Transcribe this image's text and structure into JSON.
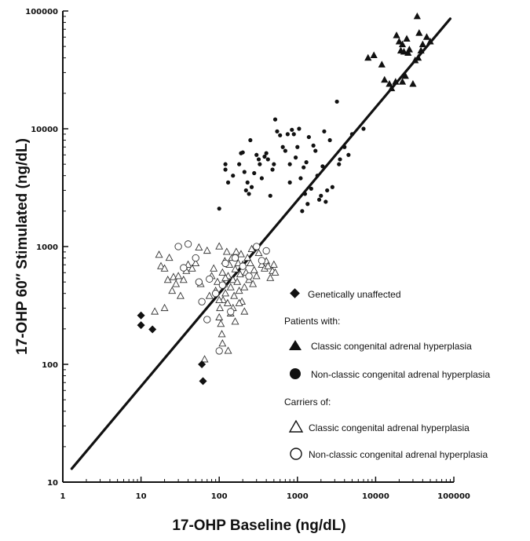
{
  "chart_data": {
    "type": "scatter",
    "x_scale": "log",
    "y_scale": "log",
    "xlabel": "17-OHP Baseline (ng/dL)",
    "ylabel": "17-OHP 60″ Stimulated (ng/dL)",
    "xlim": [
      1,
      100000
    ],
    "ylim": [
      10,
      100000
    ],
    "x_ticks": [
      "1",
      "10",
      "100",
      "1000",
      "10000",
      "100000"
    ],
    "y_ticks": [
      "10",
      "100",
      "1000",
      "10000",
      "100000"
    ],
    "x_tick_values": [
      1,
      10,
      100,
      1000,
      10000,
      100000
    ],
    "y_tick_values": [
      10,
      100,
      1000,
      10000,
      100000
    ],
    "regression_line": {
      "from": [
        1.3,
        13
      ],
      "to": [
        90000,
        86000
      ]
    },
    "legend": {
      "unaffected": "Genetically unaffected",
      "patients_heading": "Patients with:",
      "patient_classic": "Classic congenital adrenal hyperplasia",
      "patient_nonclassic": "Non-classic congenital adrenal hyperplasia",
      "carriers_heading": "Carriers of:",
      "carrier_classic": "Classic congenital adrenal hyperplasia",
      "carrier_nonclassic": "Non-classic congenital adrenal hyperplasia"
    },
    "series": [
      {
        "name": "Genetically unaffected",
        "marker": "diamond-filled",
        "points": [
          [
            10,
            260
          ],
          [
            10,
            215
          ],
          [
            14,
            198
          ],
          [
            60,
            100
          ],
          [
            62,
            72
          ]
        ]
      },
      {
        "name": "Patients with classic congenital adrenal hyperplasia",
        "marker": "triangle-filled",
        "points": [
          [
            8000,
            40000
          ],
          [
            9500,
            42000
          ],
          [
            12000,
            35000
          ],
          [
            13000,
            26000
          ],
          [
            15000,
            24000
          ],
          [
            16000,
            22000
          ],
          [
            18000,
            25000
          ],
          [
            18500,
            62000
          ],
          [
            20000,
            55000
          ],
          [
            21000,
            46000
          ],
          [
            22000,
            52000
          ],
          [
            23000,
            45000
          ],
          [
            24000,
            28000
          ],
          [
            25000,
            58000
          ],
          [
            26000,
            44000
          ],
          [
            27000,
            47000
          ],
          [
            30000,
            24000
          ],
          [
            32000,
            38000
          ],
          [
            34000,
            90000
          ],
          [
            36000,
            65000
          ],
          [
            38000,
            46000
          ],
          [
            40000,
            52000
          ],
          [
            45000,
            60000
          ],
          [
            50000,
            55000
          ],
          [
            22000,
            25000
          ],
          [
            35000,
            40000
          ]
        ]
      },
      {
        "name": "Patients with non-classic congenital adrenal hyperplasia",
        "marker": "circle-filled",
        "points": [
          [
            100,
            2100
          ],
          [
            120,
            5000
          ],
          [
            120,
            4500
          ],
          [
            130,
            3500
          ],
          [
            150,
            4000
          ],
          [
            180,
            5000
          ],
          [
            190,
            6200
          ],
          [
            200,
            6300
          ],
          [
            210,
            4300
          ],
          [
            220,
            3000
          ],
          [
            230,
            3500
          ],
          [
            240,
            2800
          ],
          [
            250,
            8000
          ],
          [
            260,
            3200
          ],
          [
            280,
            4200
          ],
          [
            300,
            6000
          ],
          [
            320,
            5500
          ],
          [
            330,
            5000
          ],
          [
            350,
            3800
          ],
          [
            380,
            5800
          ],
          [
            400,
            6200
          ],
          [
            420,
            5500
          ],
          [
            450,
            2700
          ],
          [
            480,
            4500
          ],
          [
            500,
            5000
          ],
          [
            520,
            12000
          ],
          [
            550,
            9500
          ],
          [
            600,
            8800
          ],
          [
            650,
            7000
          ],
          [
            700,
            6500
          ],
          [
            750,
            9000
          ],
          [
            800,
            5000
          ],
          [
            850,
            9800
          ],
          [
            900,
            9000
          ],
          [
            950,
            5700
          ],
          [
            1000,
            7000
          ],
          [
            1050,
            10000
          ],
          [
            1100,
            3800
          ],
          [
            1200,
            4700
          ],
          [
            1250,
            2800
          ],
          [
            1300,
            5200
          ],
          [
            1350,
            2300
          ],
          [
            1400,
            8500
          ],
          [
            1500,
            3100
          ],
          [
            1600,
            7200
          ],
          [
            1700,
            6500
          ],
          [
            1800,
            4000
          ],
          [
            1900,
            2500
          ],
          [
            2000,
            2700
          ],
          [
            2100,
            4800
          ],
          [
            2200,
            9500
          ],
          [
            2400,
            3000
          ],
          [
            2600,
            8000
          ],
          [
            2800,
            3200
          ],
          [
            3200,
            17000
          ],
          [
            3500,
            5500
          ],
          [
            4000,
            7000
          ],
          [
            4500,
            6000
          ],
          [
            5000,
            9000
          ],
          [
            7000,
            10000
          ],
          [
            800,
            3500
          ],
          [
            1150,
            2000
          ],
          [
            2300,
            2400
          ],
          [
            3400,
            5000
          ]
        ]
      },
      {
        "name": "Carriers of classic congenital adrenal hyperplasia",
        "marker": "triangle-open",
        "points": [
          [
            15,
            280
          ],
          [
            17,
            850
          ],
          [
            18,
            680
          ],
          [
            20,
            650
          ],
          [
            20,
            300
          ],
          [
            22,
            520
          ],
          [
            23,
            800
          ],
          [
            25,
            420
          ],
          [
            26,
            550
          ],
          [
            28,
            480
          ],
          [
            30,
            560
          ],
          [
            32,
            380
          ],
          [
            35,
            520
          ],
          [
            38,
            620
          ],
          [
            40,
            700
          ],
          [
            45,
            650
          ],
          [
            50,
            720
          ],
          [
            55,
            980
          ],
          [
            58,
            480
          ],
          [
            65,
            110
          ],
          [
            70,
            920
          ],
          [
            75,
            380
          ],
          [
            80,
            560
          ],
          [
            85,
            650
          ],
          [
            90,
            420
          ],
          [
            95,
            500
          ],
          [
            100,
            1000
          ],
          [
            100,
            250
          ],
          [
            102,
            300
          ],
          [
            105,
            220
          ],
          [
            108,
            180
          ],
          [
            110,
            600
          ],
          [
            112,
            350
          ],
          [
            115,
            480
          ],
          [
            118,
            750
          ],
          [
            120,
            400
          ],
          [
            125,
            900
          ],
          [
            128,
            330
          ],
          [
            130,
            560
          ],
          [
            135,
            700
          ],
          [
            140,
            450
          ],
          [
            145,
            800
          ],
          [
            150,
            520
          ],
          [
            155,
            380
          ],
          [
            160,
            640
          ],
          [
            165,
            900
          ],
          [
            170,
            500
          ],
          [
            175,
            720
          ],
          [
            180,
            420
          ],
          [
            185,
            580
          ],
          [
            190,
            860
          ],
          [
            195,
            340
          ],
          [
            200,
            700
          ],
          [
            210,
            450
          ],
          [
            220,
            600
          ],
          [
            230,
            800
          ],
          [
            240,
            520
          ],
          [
            250,
            720
          ],
          [
            260,
            950
          ],
          [
            270,
            480
          ],
          [
            280,
            630
          ],
          [
            300,
            560
          ],
          [
            320,
            880
          ],
          [
            350,
            700
          ],
          [
            380,
            650
          ],
          [
            400,
            750
          ],
          [
            420,
            680
          ],
          [
            450,
            540
          ],
          [
            480,
            620
          ],
          [
            500,
            700
          ],
          [
            520,
            600
          ],
          [
            110,
            150
          ],
          [
            130,
            130
          ],
          [
            150,
            300
          ],
          [
            100,
            350
          ],
          [
            120,
            540
          ],
          [
            140,
            270
          ],
          [
            160,
            230
          ],
          [
            180,
            330
          ],
          [
            210,
            280
          ]
        ]
      },
      {
        "name": "Carriers of non-classic congenital adrenal hyperplasia",
        "marker": "circle-open",
        "points": [
          [
            30,
            1000
          ],
          [
            35,
            660
          ],
          [
            40,
            1050
          ],
          [
            50,
            800
          ],
          [
            55,
            500
          ],
          [
            60,
            340
          ],
          [
            70,
            240
          ],
          [
            75,
            530
          ],
          [
            90,
            400
          ],
          [
            100,
            130
          ],
          [
            110,
            470
          ],
          [
            120,
            720
          ],
          [
            140,
            280
          ],
          [
            160,
            800
          ],
          [
            200,
            680
          ],
          [
            240,
            560
          ],
          [
            300,
            1000
          ],
          [
            350,
            760
          ],
          [
            400,
            920
          ]
        ]
      }
    ]
  }
}
